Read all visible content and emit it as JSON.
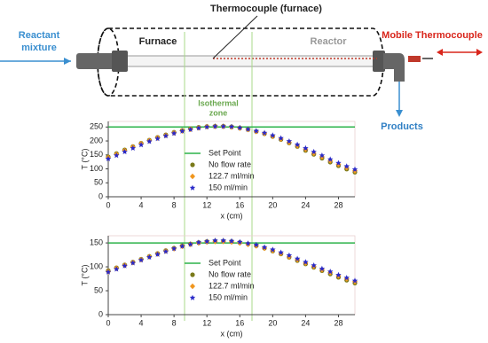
{
  "diagram": {
    "thermocouple_furnace": "Thermocouple (furnace)",
    "reactant_mixture": [
      "Reactant",
      "mixture"
    ],
    "furnace": "Furnace",
    "reactor": "Reactor",
    "mobile_thermocouple": "Mobile Thermocouple",
    "products": "Products",
    "isothermal_zone": [
      "Isothermal",
      "zone"
    ]
  },
  "chart_data": [
    {
      "type": "scatter",
      "ylabel": "T (°C)",
      "xlabel": "x (cm)",
      "x": [
        0,
        1,
        2,
        3,
        4,
        5,
        6,
        7,
        8,
        9,
        10,
        11,
        12,
        13,
        14,
        15,
        16,
        17,
        18,
        19,
        20,
        21,
        22,
        23,
        24,
        25,
        26,
        27,
        28,
        29,
        30
      ],
      "xlim": [
        0,
        30
      ],
      "xticks": [
        0,
        4,
        8,
        12,
        16,
        20,
        24,
        28
      ],
      "ylim": [
        0,
        270
      ],
      "yticks": [
        0,
        50,
        100,
        150,
        200,
        250
      ],
      "series": [
        {
          "name": "Set Point",
          "color": "#2db34a",
          "marker": "line",
          "values": [
            250,
            250,
            250,
            250,
            250,
            250,
            250,
            250,
            250,
            250,
            250,
            250,
            250,
            250,
            250,
            250,
            250,
            250,
            250,
            250,
            250,
            250,
            250,
            250,
            250,
            250,
            250,
            250,
            250,
            250,
            250
          ]
        },
        {
          "name": "No flow rate",
          "color": "#7a7a1a",
          "marker": "circle",
          "values": [
            143,
            155,
            168,
            180,
            192,
            203,
            213,
            222,
            231,
            238,
            244,
            249,
            252,
            253,
            253,
            251,
            247,
            241,
            234,
            226,
            216,
            205,
            193,
            180,
            166,
            152,
            138,
            124,
            111,
            99,
            88
          ]
        },
        {
          "name": "122.7 ml/min",
          "color": "#f0961e",
          "marker": "diamond",
          "values": [
            140,
            152,
            165,
            178,
            190,
            201,
            211,
            220,
            229,
            236,
            242,
            247,
            251,
            252,
            252,
            250,
            246,
            241,
            234,
            227,
            217,
            207,
            195,
            183,
            170,
            156,
            143,
            129,
            116,
            104,
            93
          ]
        },
        {
          "name": "150 ml/min",
          "color": "#2a2ac8",
          "marker": "star",
          "values": [
            136,
            148,
            161,
            174,
            186,
            198,
            208,
            218,
            227,
            235,
            241,
            246,
            250,
            252,
            252,
            251,
            247,
            242,
            236,
            229,
            220,
            210,
            199,
            187,
            174,
            161,
            148,
            134,
            121,
            109,
            98
          ]
        }
      ]
    },
    {
      "type": "scatter",
      "ylabel": "T (°C)",
      "xlabel": "x (cm)",
      "x": [
        0,
        1,
        2,
        3,
        4,
        5,
        6,
        7,
        8,
        9,
        10,
        11,
        12,
        13,
        14,
        15,
        16,
        17,
        18,
        19,
        20,
        21,
        22,
        23,
        24,
        25,
        26,
        27,
        28,
        29,
        30
      ],
      "xlim": [
        0,
        30
      ],
      "xticks": [
        0,
        4,
        8,
        12,
        16,
        20,
        24,
        28
      ],
      "ylim": [
        0,
        165
      ],
      "yticks": [
        0,
        50,
        100,
        150
      ],
      "series": [
        {
          "name": "Set Point",
          "color": "#2db34a",
          "marker": "line",
          "values": [
            150,
            150,
            150,
            150,
            150,
            150,
            150,
            150,
            150,
            150,
            150,
            150,
            150,
            150,
            150,
            150,
            150,
            150,
            150,
            150,
            150,
            150,
            150,
            150,
            150,
            150,
            150,
            150,
            150,
            150,
            150
          ]
        },
        {
          "name": "No flow rate",
          "color": "#7a7a1a",
          "marker": "circle",
          "values": [
            92,
            98,
            104,
            110,
            116,
            122,
            128,
            134,
            139,
            144,
            148,
            151,
            153,
            154,
            154,
            153,
            151,
            148,
            144,
            139,
            133,
            127,
            120,
            113,
            106,
            99,
            92,
            85,
            78,
            72,
            66
          ]
        },
        {
          "name": "122.7 ml/min",
          "color": "#f0961e",
          "marker": "diamond",
          "values": [
            90,
            97,
            103,
            109,
            115,
            121,
            127,
            133,
            138,
            143,
            147,
            150,
            152,
            153,
            153,
            152,
            150,
            147,
            144,
            139,
            134,
            128,
            121,
            115,
            108,
            101,
            94,
            88,
            81,
            75,
            69
          ]
        },
        {
          "name": "150 ml/min",
          "color": "#2a2ac8",
          "marker": "star",
          "values": [
            89,
            95,
            102,
            108,
            114,
            120,
            126,
            132,
            138,
            143,
            147,
            151,
            153,
            155,
            155,
            154,
            152,
            149,
            146,
            141,
            136,
            130,
            124,
            117,
            110,
            103,
            96,
            90,
            83,
            77,
            71
          ]
        }
      ]
    }
  ]
}
